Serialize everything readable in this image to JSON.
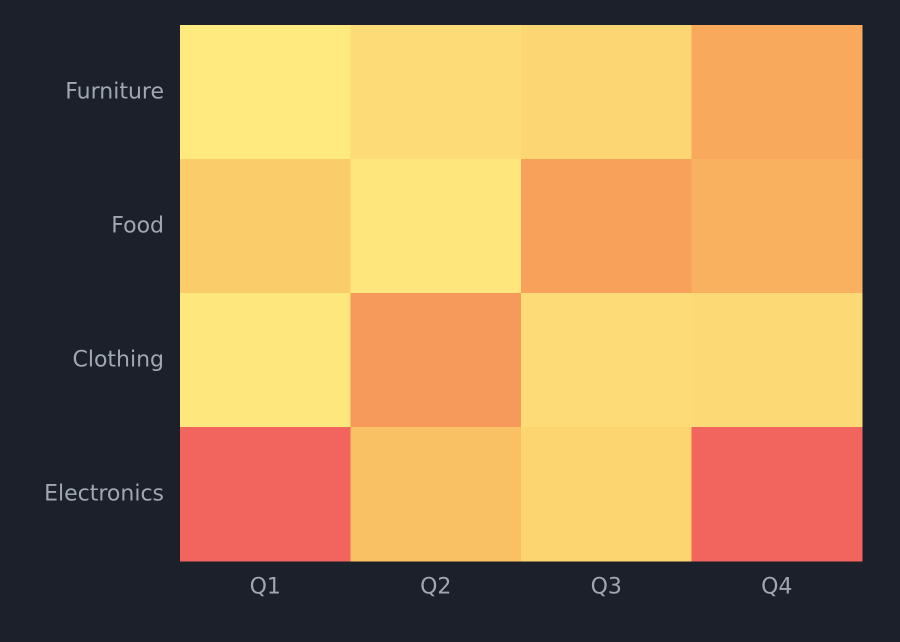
{
  "chart_data": {
    "type": "heatmap",
    "x_categories": [
      "Q1",
      "Q2",
      "Q3",
      "Q4"
    ],
    "y_categories": [
      "Furniture",
      "Food",
      "Clothing",
      "Electronics"
    ],
    "values": [
      [
        10,
        30,
        35,
        70
      ],
      [
        45,
        15,
        75,
        65
      ],
      [
        12,
        78,
        30,
        32
      ],
      [
        100,
        55,
        38,
        100
      ]
    ],
    "color_scale": [
      "#fff080",
      "#fde07a",
      "#fbc866",
      "#f7a15a",
      "#f2655f"
    ],
    "value_range": [
      0,
      100
    ],
    "title": "",
    "xlabel": "",
    "ylabel": "",
    "legend": "none",
    "grid": false
  },
  "colors": {
    "background": "#1b202a",
    "tick_label": "#a0a7b2"
  }
}
